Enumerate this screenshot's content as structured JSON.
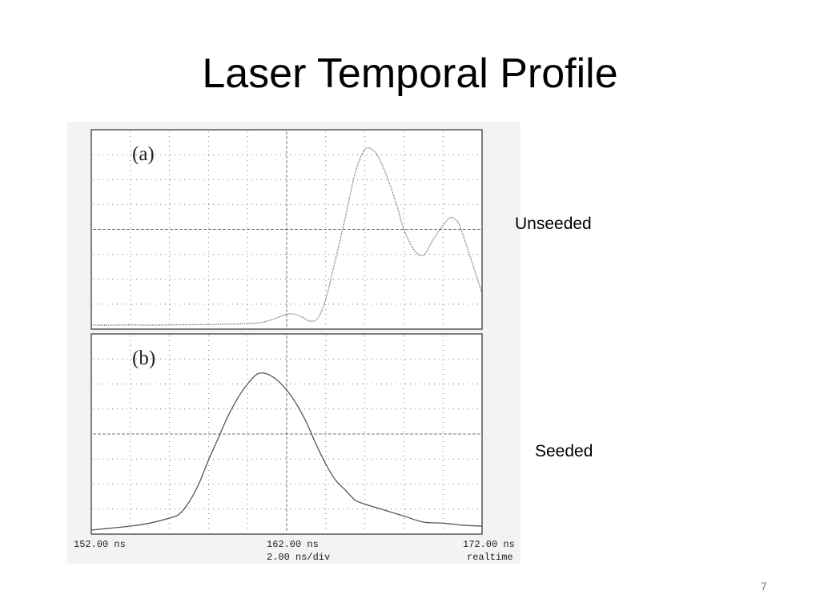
{
  "slide": {
    "title": "Laser Temporal Profile",
    "page_number": "7"
  },
  "labels": {
    "panel_a_side": "Unseeded",
    "panel_b_side": "Seeded"
  },
  "colors": {
    "trace": "#555555",
    "grid": "#777777",
    "frame": "#555555"
  },
  "chart_data": [
    {
      "type": "line",
      "panel_tag": "(a)",
      "xlim": [
        152,
        172
      ],
      "ylim": [
        0,
        1
      ],
      "grid": true,
      "x_tick_labels": [
        "152.00 ns",
        "162.00 ns",
        "172.00 ns"
      ],
      "x_scale_label": "2.00 ns/div",
      "mode_label": "realtime",
      "series": [
        {
          "x": [
            152,
            153,
            154,
            155,
            156,
            157,
            158,
            158.5,
            159,
            159.5,
            160,
            160.5,
            161,
            161.3,
            161.6,
            162,
            162.4,
            162.8,
            163.2,
            163.6,
            164,
            164.5,
            165,
            165.5,
            166,
            166.5,
            166.9,
            167.3,
            167.7,
            168,
            168.5,
            169,
            169.5,
            170,
            170.4,
            170.8,
            171.2,
            171.6,
            172
          ],
          "y": [
            0.02,
            0.02,
            0.021,
            0.02,
            0.021,
            0.022,
            0.023,
            0.024,
            0.025,
            0.026,
            0.028,
            0.03,
            0.04,
            0.05,
            0.06,
            0.075,
            0.075,
            0.06,
            0.04,
            0.055,
            0.15,
            0.35,
            0.56,
            0.78,
            0.9,
            0.89,
            0.82,
            0.72,
            0.6,
            0.5,
            0.4,
            0.37,
            0.45,
            0.52,
            0.56,
            0.53,
            0.42,
            0.3,
            0.18
          ]
        }
      ]
    },
    {
      "type": "line",
      "panel_tag": "(b)",
      "xlim": [
        152,
        172
      ],
      "ylim": [
        0,
        1
      ],
      "grid": true,
      "series": [
        {
          "x": [
            152,
            153,
            154,
            155,
            156,
            156.5,
            157,
            157.5,
            158,
            158.5,
            159,
            159.5,
            160,
            160.5,
            161,
            161.5,
            162,
            162.5,
            163,
            163.5,
            164,
            164.5,
            165,
            165.5,
            166,
            167,
            168,
            169,
            170,
            171,
            172
          ],
          "y": [
            0.02,
            0.03,
            0.04,
            0.055,
            0.08,
            0.1,
            0.16,
            0.25,
            0.37,
            0.48,
            0.59,
            0.68,
            0.75,
            0.8,
            0.8,
            0.77,
            0.72,
            0.65,
            0.56,
            0.45,
            0.35,
            0.27,
            0.22,
            0.17,
            0.15,
            0.12,
            0.09,
            0.06,
            0.055,
            0.045,
            0.04
          ]
        }
      ]
    }
  ]
}
